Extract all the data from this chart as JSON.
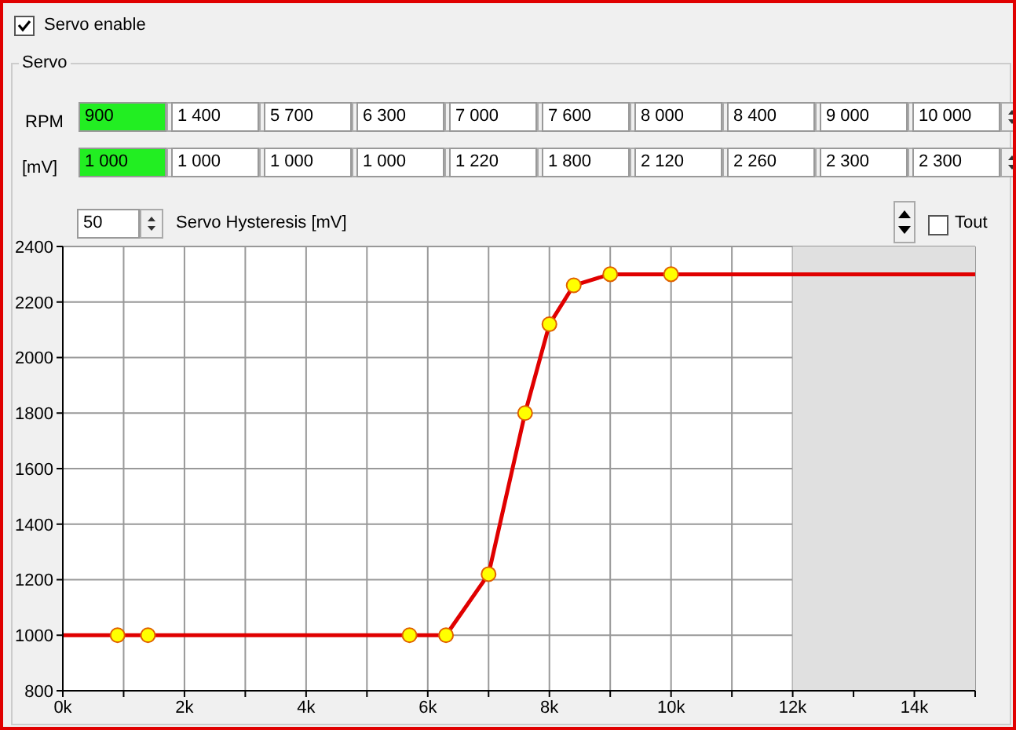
{
  "chart_data": {
    "type": "line",
    "annotations": [
      "Servo enable",
      "Servo",
      "RPM",
      "900",
      "1 400",
      "5 700",
      "6 300",
      "7 000",
      "7 600",
      "8 000",
      "8 400",
      "9 000",
      "10 000",
      "[mV]",
      "1 000",
      "1 000",
      "1 000",
      "1 000",
      "1 220",
      "1 800",
      "2 120",
      "2 260",
      "2 300",
      "2 300",
      "50",
      "Servo Hysteresis [mV]",
      "Tout"
    ],
    "series": [
      {
        "type": "line",
        "color": "#e00000",
        "marker": "none",
        "x": [
          0,
          900,
          1400,
          5700,
          6300,
          7000,
          7600,
          8000,
          8400,
          9000,
          10000,
          15000
        ],
        "values": [
          1000,
          1000,
          1000,
          1000,
          1000,
          1220,
          1800,
          2120,
          2260,
          2300,
          2300,
          2300
        ]
      },
      {
        "type": "scatter",
        "color": "#ffff00",
        "marker": "circle",
        "x": [
          900,
          1400,
          5700,
          6300,
          7000,
          7600,
          8000,
          8400,
          9000,
          10000
        ],
        "values": [
          1000,
          1000,
          1000,
          1000,
          1220,
          1800,
          2120,
          2260,
          2300,
          2300
        ]
      }
    ],
    "xlim": [
      0,
      15000
    ],
    "xticks": [
      {
        "value": 0,
        "label": "0k"
      },
      {
        "value": 1000,
        "label": null
      },
      {
        "value": 2000,
        "label": "2k"
      },
      {
        "value": 3000,
        "label": null
      },
      {
        "value": 4000,
        "label": "4k"
      },
      {
        "value": 5000,
        "label": null
      },
      {
        "value": 6000,
        "label": "6k"
      },
      {
        "value": 7000,
        "label": null
      },
      {
        "value": 8000,
        "label": "8k"
      },
      {
        "value": 9000,
        "label": null
      },
      {
        "value": 10000,
        "label": "10k"
      },
      {
        "value": 11000,
        "label": null
      },
      {
        "value": 12000,
        "label": "12k"
      },
      {
        "value": 13000,
        "label": null
      },
      {
        "value": 14000,
        "label": "14k"
      },
      {
        "value": 15000,
        "label": null
      }
    ],
    "ylim": [
      800,
      2400
    ],
    "yticks": [
      800,
      1000,
      1200,
      1400,
      1600,
      1800,
      2000,
      2200,
      2400
    ],
    "grid": true,
    "bands": [
      {
        "axis": "x",
        "from": 12000,
        "to": 15000,
        "color": "#e0e0e0"
      }
    ]
  }
}
